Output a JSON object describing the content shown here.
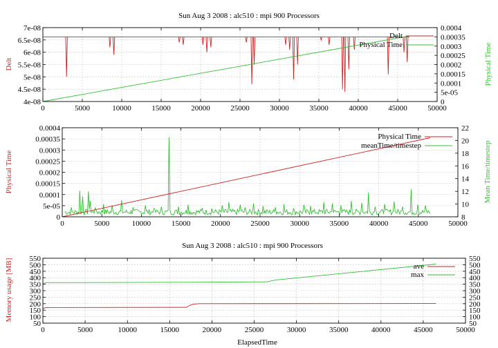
{
  "chart_data": [
    {
      "type": "line",
      "title": "Sun Aug 3 2008 : alc510 : mpi 900 Processors",
      "xlabel": "",
      "ylabel": "Delt",
      "y2label": "Physical Time",
      "xlim": [
        0,
        50000
      ],
      "ylim": [
        4e-08,
        7e-08
      ],
      "y2lim": [
        0,
        0.0004
      ],
      "x_ticks": [
        "0",
        "5000",
        "10000",
        "15000",
        "20000",
        "25000",
        "30000",
        "35000",
        "40000",
        "45000",
        "50000"
      ],
      "y_ticks": [
        "4e-08",
        "4.5e-08",
        "5e-08",
        "5.5e-08",
        "6e-08",
        "6.5e-08",
        "7e-08"
      ],
      "y2_ticks": [
        "0",
        "5e-05",
        "0.0001",
        "0.00015",
        "0.0002",
        "0.00025",
        "0.0003",
        "0.00035",
        "0.0004"
      ],
      "grid": true,
      "legend_position": "top-right",
      "series": [
        {
          "name": "Delt",
          "axis": "left",
          "color": "#d02020",
          "baseline": 6.62e-08,
          "x_end": 46500,
          "dips": [
            [
              3000,
              5e-08
            ],
            [
              8500,
              6.2e-08
            ],
            [
              9000,
              5.9e-08
            ],
            [
              17300,
              6.4e-08
            ],
            [
              17800,
              6.3e-08
            ],
            [
              20300,
              6.3e-08
            ],
            [
              20800,
              6e-08
            ],
            [
              21300,
              6.2e-08
            ],
            [
              25800,
              6.4e-08
            ],
            [
              26500,
              4.7e-08
            ],
            [
              26800,
              5.5e-08
            ],
            [
              30800,
              6.3e-08
            ],
            [
              31300,
              6.1e-08
            ],
            [
              31800,
              4.9e-08
            ],
            [
              32300,
              5.5e-08
            ],
            [
              35300,
              6.5e-08
            ],
            [
              36300,
              6.3e-08
            ],
            [
              38000,
              4.5e-08
            ],
            [
              38300,
              4.4e-08
            ],
            [
              38800,
              5.3e-08
            ],
            [
              39500,
              6.1e-08
            ],
            [
              43800,
              5.1e-08
            ],
            [
              45800,
              6e-08
            ],
            [
              46200,
              5.6e-08
            ]
          ]
        },
        {
          "name": "Physical Time",
          "axis": "right",
          "color": "#30c030",
          "x": [
            0,
            46500
          ],
          "y": [
            0,
            0.000355
          ]
        }
      ]
    },
    {
      "type": "line",
      "title": "",
      "ylabel": "Physical Time",
      "y2label": "Mean Time/timestep",
      "xlim": [
        0,
        50000
      ],
      "ylim": [
        0,
        0.0004
      ],
      "y2lim": [
        8,
        22
      ],
      "x_ticks": [
        "0",
        "5000",
        "10000",
        "15000",
        "20000",
        "25000",
        "30000",
        "35000",
        "40000",
        "45000",
        "50000"
      ],
      "y_ticks": [
        "0",
        "5e-05",
        "0.0001",
        "0.00015",
        "0.0002",
        "0.00025",
        "0.0003",
        "0.00035",
        "0.0004"
      ],
      "y2_ticks": [
        "8",
        "10",
        "12",
        "14",
        "16",
        "18",
        "20",
        "22"
      ],
      "grid": true,
      "legend_position": "top-right",
      "series": [
        {
          "name": "Physical Time",
          "axis": "left",
          "color": "#d02020",
          "x": [
            0,
            46500
          ],
          "y": [
            0,
            0.000355
          ]
        },
        {
          "name": "meanTime/timestep",
          "axis": "right",
          "color": "#30c030",
          "x_start": 300,
          "x_end": 46500,
          "baseline": 8.3,
          "spikes": [
            [
              1200,
              9.5
            ],
            [
              2300,
              12.1
            ],
            [
              2600,
              11.2
            ],
            [
              3300,
              12.0
            ],
            [
              3600,
              10.5
            ],
            [
              4200,
              9.4
            ],
            [
              5300,
              10.0
            ],
            [
              6400,
              9.8
            ],
            [
              7600,
              10.6
            ],
            [
              9000,
              9.5
            ],
            [
              10500,
              9.8
            ],
            [
              11600,
              9.3
            ],
            [
              12600,
              9.6
            ],
            [
              13600,
              20.5
            ],
            [
              14800,
              9.6
            ],
            [
              16000,
              9.9
            ],
            [
              17800,
              9.4
            ],
            [
              19000,
              9.3
            ],
            [
              20300,
              9.8
            ],
            [
              21100,
              10.3
            ],
            [
              22600,
              9.9
            ],
            [
              23100,
              9.5
            ],
            [
              24200,
              10.1
            ],
            [
              25400,
              9.7
            ],
            [
              27000,
              9.5
            ],
            [
              28100,
              10.0
            ],
            [
              29300,
              9.3
            ],
            [
              30600,
              9.9
            ],
            [
              31400,
              9.7
            ],
            [
              33100,
              10.3
            ],
            [
              34200,
              10.1
            ],
            [
              35300,
              9.8
            ],
            [
              36600,
              10.5
            ],
            [
              37900,
              10.2
            ],
            [
              38800,
              11.8
            ],
            [
              39600,
              9.6
            ],
            [
              40800,
              10.0
            ],
            [
              42000,
              10.4
            ],
            [
              43100,
              9.6
            ],
            [
              44100,
              12.3
            ],
            [
              45000,
              9.9
            ],
            [
              46000,
              9.8
            ]
          ]
        }
      ]
    },
    {
      "type": "line",
      "title": "Sun Aug 3 2008 : alc510 : mpi 900 Processors",
      "xlabel": "ElapsedTime",
      "ylabel": "Memory usage [MB]",
      "xlim": [
        0,
        50000
      ],
      "ylim": [
        50,
        550
      ],
      "y2lim": [
        50,
        550
      ],
      "x_ticks": [
        "0",
        "5000",
        "10000",
        "15000",
        "20000",
        "25000",
        "30000",
        "35000",
        "40000",
        "45000",
        "50000"
      ],
      "y_ticks": [
        "50",
        "100",
        "150",
        "200",
        "250",
        "300",
        "350",
        "400",
        "450",
        "500",
        "550"
      ],
      "y2_ticks": [
        "50",
        "100",
        "150",
        "200",
        "250",
        "300",
        "350",
        "400",
        "450",
        "500",
        "550"
      ],
      "grid": true,
      "legend_position": "top-right",
      "series": [
        {
          "name": "ave",
          "color": "#d02020",
          "x": [
            0,
            300,
            17000,
            17300,
            17800,
            18500,
            46500
          ],
          "y": [
            160,
            170,
            172,
            185,
            197,
            200,
            201
          ]
        },
        {
          "name": "max",
          "color": "#30c030",
          "x": [
            0,
            300,
            17000,
            26500,
            27500,
            46500
          ],
          "y": [
            352,
            362,
            365,
            368,
            382,
            505
          ]
        }
      ]
    }
  ]
}
